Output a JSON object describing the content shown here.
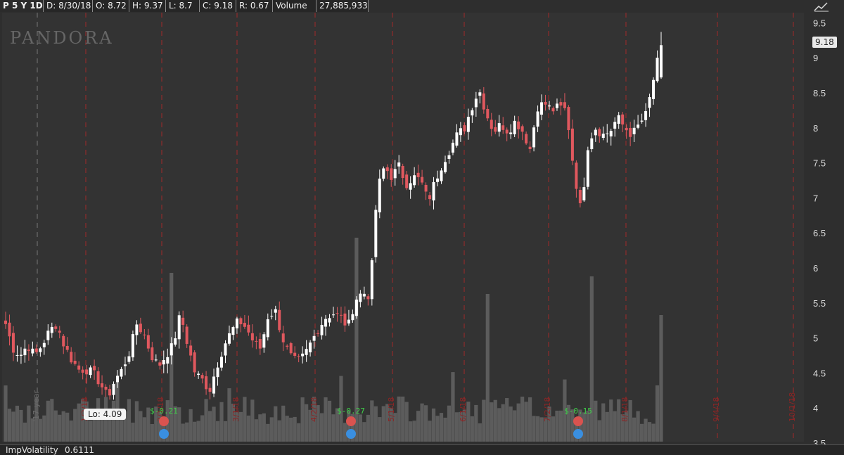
{
  "header": {
    "symbol": "P 5 Y 1D",
    "date": "D: 8/30/18",
    "open": "O: 8.72",
    "high": "H: 9.37",
    "low": "L: 8.7",
    "close": "C: 9.18",
    "range": "R: 0.67",
    "volume_label": "Volume",
    "volume_value": "27,885,933"
  },
  "watermark": "PANDORA",
  "low_marker": "Lo: 4.09",
  "current_price": "9.18",
  "study": {
    "label": "ImpVolatility",
    "value": "0.6111"
  },
  "chart_data": {
    "type": "candlestick",
    "ylim": [
      3.5,
      9.5
    ],
    "y_ticks": [
      "9.5",
      "9",
      "8.5",
      "8",
      "7.5",
      "7",
      "6.5",
      "6",
      "5.5",
      "5",
      "4.5",
      "4",
      "3.5"
    ],
    "x_tick_labels": [
      "'17 year",
      "1/2/18",
      "2/1/18",
      "3/1/18",
      "4/2/18",
      "5/1/18",
      "6/1/18",
      "7/2/18",
      "8/1/18",
      "9/4/18",
      "10/1/18"
    ],
    "earnings": [
      {
        "label": "$-0.21"
      },
      {
        "label": "$-0.27"
      },
      {
        "label": "$-0.15"
      }
    ],
    "colors": {
      "up": "#ffffff",
      "down": "#e0585e",
      "volume": "#5c5c5c",
      "divider": "#a12a2a"
    },
    "close_path": [
      5.2,
      4.85,
      4.75,
      4.9,
      4.75,
      4.9,
      5.1,
      5.2,
      4.9,
      4.7,
      4.55,
      4.55,
      4.5,
      4.35,
      4.15,
      4.4,
      4.55,
      4.8,
      5.2,
      5.05,
      4.75,
      4.6,
      4.75,
      4.9,
      5.35,
      4.9,
      4.5,
      4.4,
      4.25,
      4.6,
      4.9,
      5.1,
      5.25,
      5.15,
      4.95,
      4.85,
      5.3,
      5.4,
      5.0,
      4.75,
      4.65,
      4.75,
      4.95,
      5.15,
      5.3,
      5.35,
      5.3,
      5.15,
      5.55,
      5.65,
      5.6,
      7.1,
      7.45,
      7.3,
      7.45,
      7.2,
      7.3,
      7.25,
      6.95,
      7.25,
      7.5,
      7.7,
      7.9,
      8.0,
      8.3,
      8.55,
      8.2,
      7.95,
      8.05,
      7.95,
      8.1,
      7.95,
      7.7,
      8.3,
      8.35,
      8.25,
      8.3,
      8.25,
      7.4,
      6.8,
      7.8,
      8.0,
      7.9,
      7.95,
      8.15,
      8.0,
      7.9,
      8.05,
      8.2,
      8.72,
      9.18
    ]
  }
}
